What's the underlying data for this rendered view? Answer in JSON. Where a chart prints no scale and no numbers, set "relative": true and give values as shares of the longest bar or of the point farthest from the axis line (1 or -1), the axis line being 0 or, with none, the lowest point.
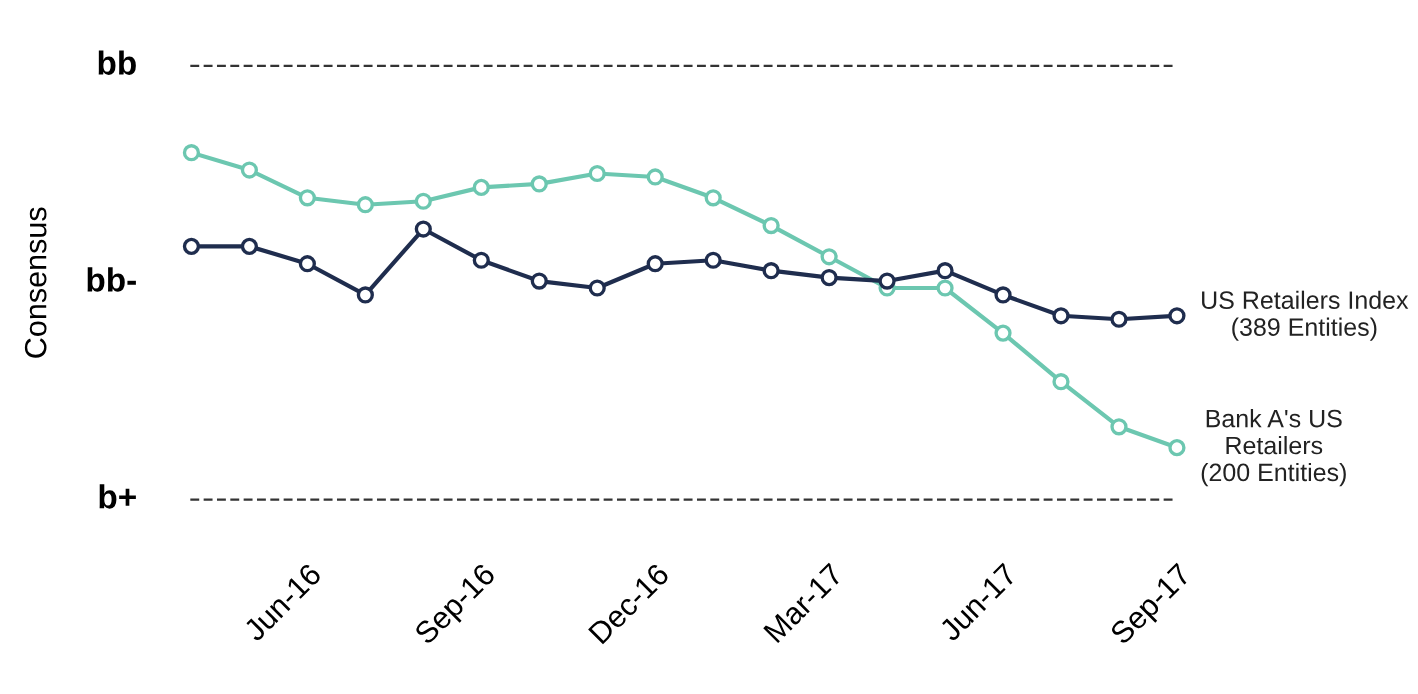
{
  "chart_data": {
    "type": "line",
    "ylabel": "Consensus",
    "relative": true,
    "categories": [
      null,
      null,
      "Jun-16",
      null,
      null,
      "Sep-16",
      null,
      null,
      "Dec-16",
      null,
      null,
      "Mar-17",
      null,
      null,
      "Jun-17",
      null,
      null,
      "Sep-17"
    ],
    "series": [
      {
        "name": "US Retailers Index\n(389 Entities)",
        "color": "#1f2d4e",
        "values": [
          0.73,
          0.73,
          0.68,
          0.59,
          0.78,
          0.69,
          0.63,
          0.61,
          0.68,
          0.69,
          0.66,
          0.64,
          0.63,
          0.66,
          0.59,
          0.53,
          0.52,
          0.53
        ]
      },
      {
        "name": "Bank A's US\nRetailers\n(200 Entities)",
        "color": "#6cc7b0",
        "values": [
          1.0,
          0.95,
          0.87,
          0.85,
          0.86,
          0.9,
          0.91,
          0.94,
          0.93,
          0.87,
          0.79,
          0.7,
          0.61,
          0.61,
          0.48,
          0.34,
          0.21,
          0.15
        ]
      }
    ],
    "annotations": [
      "bb",
      "bb-",
      "b+"
    ],
    "marker": "circle",
    "line_style": "solid",
    "grid": false
  }
}
